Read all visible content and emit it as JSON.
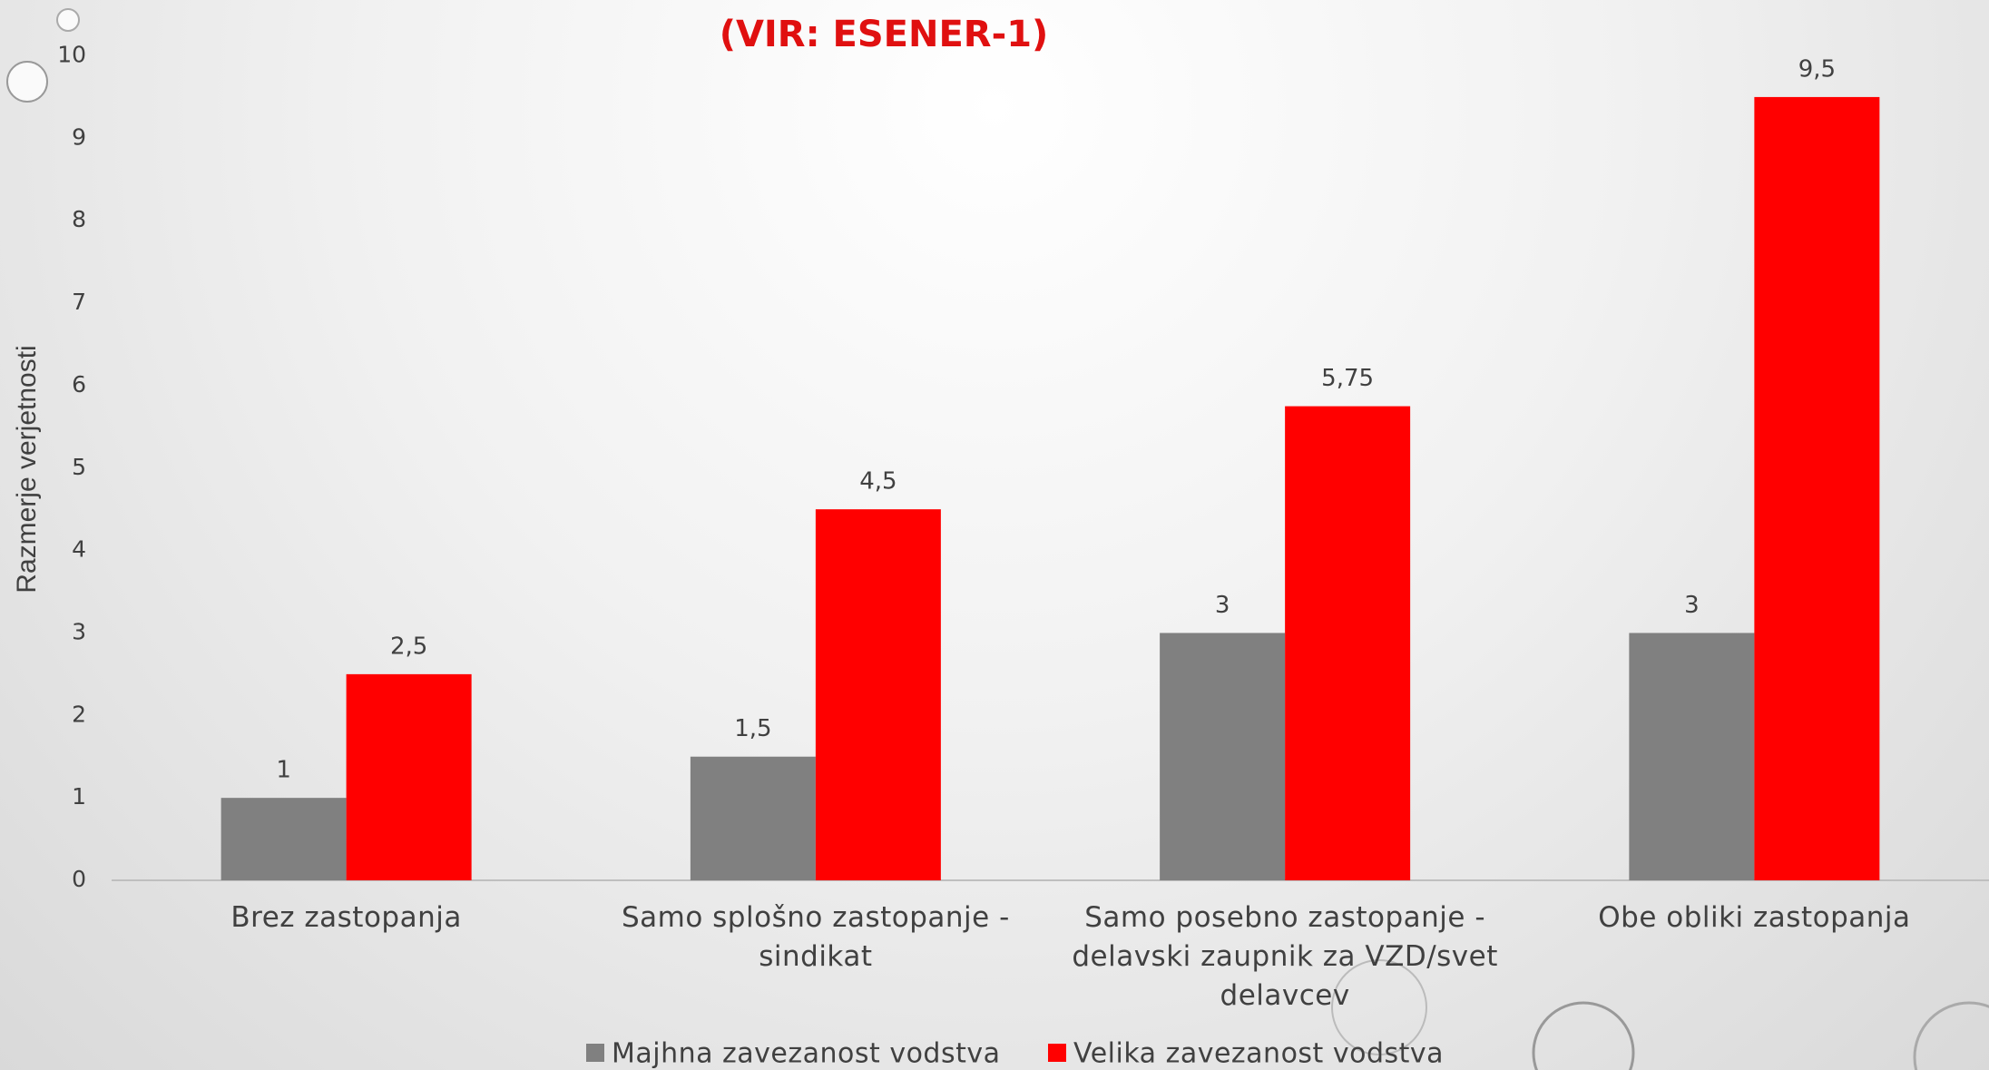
{
  "chart_data": {
    "type": "bar",
    "title": "(VIR: ESENER-1)",
    "y_label": "Razmerje verjetnosti",
    "categories": [
      "Brez zastopanja",
      "Samo splošno zastopanje - sindikat",
      "Samo posebno zastopanje - delavski zaupnik za VZD/svet delavcev",
      "Obe obliki zastopanja"
    ],
    "series": [
      {
        "name": "Majhna zavezanost vodstva",
        "color": "#808080",
        "values": [
          1,
          1.5,
          3,
          3
        ],
        "value_labels": [
          "1",
          "1,5",
          "3",
          "3"
        ]
      },
      {
        "name": "Velika zavezanost vodstva",
        "color": "#ff0000",
        "values": [
          2.5,
          4.5,
          5.75,
          9.5
        ],
        "value_labels": [
          "2,5",
          "4,5",
          "5,75",
          "9,5"
        ]
      }
    ],
    "ylim": [
      0,
      10
    ],
    "yticks": [
      0,
      1,
      2,
      3,
      4,
      5,
      6,
      7,
      8,
      9,
      10
    ],
    "grid": false,
    "legend": "bottom"
  }
}
